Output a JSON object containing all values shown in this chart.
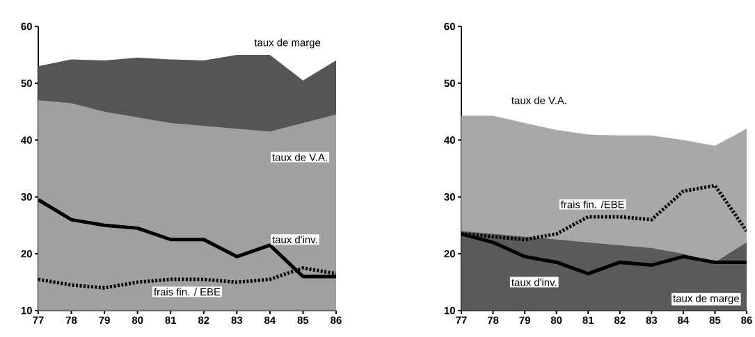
{
  "chart_data": [
    {
      "type": "area",
      "categories": [
        "77",
        "78",
        "79",
        "80",
        "81",
        "82",
        "83",
        "84",
        "85",
        "86"
      ],
      "ylim": [
        10,
        60
      ],
      "yticks": [
        10,
        20,
        30,
        40,
        50,
        60
      ],
      "series": [
        {
          "name": "taux de marge",
          "color": "#555555",
          "values": [
            53,
            54.2,
            54,
            54.5,
            54.2,
            54,
            55,
            55,
            50.5,
            54
          ]
        },
        {
          "name": "taux de V.A.",
          "color": "#a0a0a0",
          "values": [
            47,
            46.5,
            45,
            44,
            43,
            42.5,
            42,
            41.5,
            43,
            44.5
          ]
        },
        {
          "name": "taux d'inv.",
          "type": "line",
          "color": "#000000",
          "values": [
            29.5,
            26,
            25,
            24.5,
            22.5,
            22.5,
            19.5,
            21.5,
            16,
            16
          ]
        },
        {
          "name": "frais fin. / EBE",
          "type": "line",
          "color": "#000000",
          "line_style": "dashed",
          "values": [
            15.5,
            14.5,
            14,
            15,
            15.5,
            15.5,
            15,
            15.5,
            17.5,
            16.5
          ]
        }
      ]
    },
    {
      "type": "area",
      "categories": [
        "77",
        "78",
        "79",
        "80",
        "81",
        "82",
        "83",
        "84",
        "85",
        "86"
      ],
      "ylim": [
        10,
        60
      ],
      "yticks": [
        10,
        20,
        30,
        40,
        50,
        60
      ],
      "series": [
        {
          "name": "taux de V.A.",
          "color": "#a8a8a8",
          "values": [
            44.3,
            44.3,
            43,
            41.8,
            41,
            40.8,
            40.8,
            40,
            39,
            42
          ]
        },
        {
          "name": "taux de marge",
          "color": "#5a5a5a",
          "values": [
            24,
            23.5,
            23,
            22.5,
            22,
            21.5,
            21,
            20,
            18.5,
            22
          ]
        },
        {
          "name": "frais fin. /EBE",
          "type": "line",
          "color": "#000000",
          "line_style": "dashed",
          "values": [
            23.5,
            23,
            22.5,
            23.5,
            26.5,
            26.5,
            26,
            31,
            32,
            24
          ]
        },
        {
          "name": "taux d'inv.",
          "type": "line",
          "color": "#000000",
          "values": [
            23.5,
            22,
            19.5,
            18.5,
            16.5,
            18.5,
            18,
            19.5,
            18.5,
            18.5
          ]
        }
      ]
    }
  ]
}
